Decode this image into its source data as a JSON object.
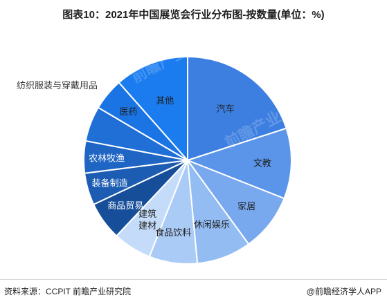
{
  "header": {
    "title": "图表10：2021年中国展览会行业分布图-按数量(单位：%)"
  },
  "footer": {
    "source": "资料来源：CCPIT 前瞻产业研究院",
    "brand": "@前瞻经济学人APP"
  },
  "watermark": {
    "text": "前瞻产业研究院"
  },
  "chart_data": {
    "type": "pie",
    "title": "图表10：2021年中国展览会行业分布图-按数量(单位：%)",
    "unit": "%",
    "start": "12 o'clock",
    "direction": "clockwise",
    "slices": [
      {
        "label": "汽车",
        "value": 20.0,
        "color": "#3d7fe0"
      },
      {
        "label": "文教",
        "value": 11.0,
        "color": "#5b95ea"
      },
      {
        "label": "家居",
        "value": 9.0,
        "color": "#78a8ee"
      },
      {
        "label": "休闲娱乐",
        "value": 8.5,
        "color": "#93bcf3"
      },
      {
        "label": "食品饮料",
        "value": 7.5,
        "color": "#aacbf6"
      },
      {
        "label": "建筑建材",
        "value": 6.0,
        "color": "#c4dcfa"
      },
      {
        "label": "商品贸易",
        "value": 6.0,
        "color": "#174e9a"
      },
      {
        "label": "装备制造",
        "value": 5.0,
        "color": "#1c5cb2"
      },
      {
        "label": "农林牧渔",
        "value": 5.0,
        "color": "#1f65c4"
      },
      {
        "label": "纺织服装与穿戴用品",
        "value": 5.5,
        "color": "#1f6fd6"
      },
      {
        "label": "医药",
        "value": 5.0,
        "color": "#1b74e4"
      },
      {
        "label": "其他",
        "value": 11.5,
        "color": "#1b7cf0"
      }
    ]
  }
}
